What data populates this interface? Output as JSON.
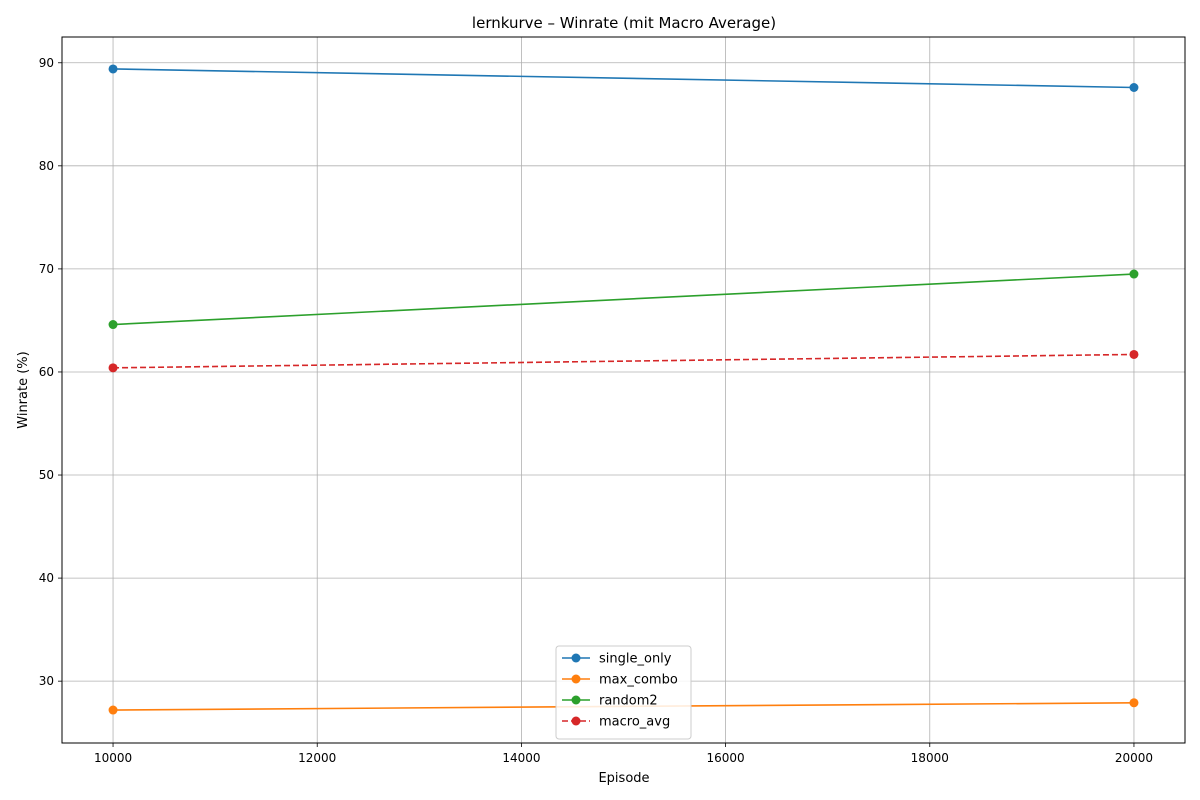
{
  "chart_data": {
    "type": "line",
    "title": "lernkurve – Winrate (mit Macro Average)",
    "xlabel": "Episode",
    "ylabel": "Winrate (%)",
    "xlim": [
      9500,
      20500
    ],
    "ylim": [
      24,
      92.5
    ],
    "xticks": [
      10000,
      12000,
      14000,
      16000,
      18000,
      20000
    ],
    "yticks": [
      30,
      40,
      50,
      60,
      70,
      80,
      90
    ],
    "grid": true,
    "legend_position": "bottom-center",
    "x": [
      10000,
      20000
    ],
    "series": [
      {
        "name": "single_only",
        "values": [
          89.4,
          87.6
        ],
        "color": "#1f77b4",
        "linestyle": "solid",
        "marker": "circle"
      },
      {
        "name": "max_combo",
        "values": [
          27.2,
          27.9
        ],
        "color": "#ff7f0e",
        "linestyle": "solid",
        "marker": "circle"
      },
      {
        "name": "random2",
        "values": [
          64.6,
          69.5
        ],
        "color": "#2ca02c",
        "linestyle": "solid",
        "marker": "circle"
      },
      {
        "name": "macro_avg",
        "values": [
          60.4,
          61.7
        ],
        "color": "#d62728",
        "linestyle": "dashed",
        "marker": "circle"
      }
    ]
  }
}
